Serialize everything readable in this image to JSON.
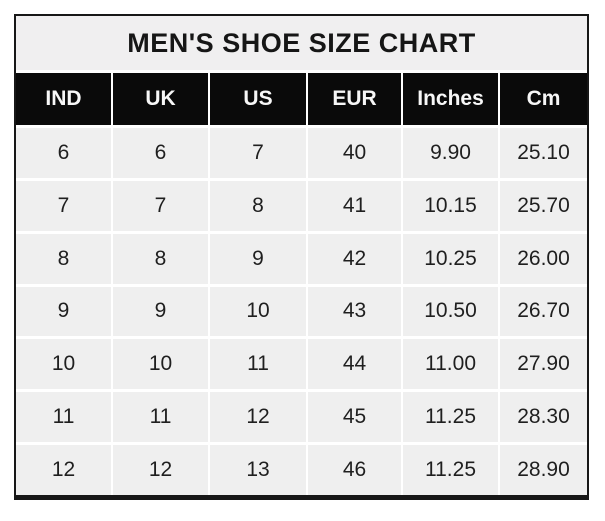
{
  "page_title": "MEN'S SHOE SIZE CHART",
  "colors": {
    "page_background": "#ffffff",
    "frame_border": "#171717",
    "title_background": "#f0eff0",
    "title_text": "#161616",
    "header_background": "#0a0a0a",
    "header_text": "#f7f7f7",
    "cell_background": "#efefef",
    "cell_text": "#1f1f1f",
    "grid_gap": "#ffffff"
  },
  "chart_data": {
    "type": "table",
    "title": "MEN'S SHOE SIZE CHART",
    "columns": [
      "IND",
      "UK",
      "US",
      "EUR",
      "Inches",
      "Cm"
    ],
    "rows": [
      [
        "6",
        "6",
        "7",
        "40",
        "9.90",
        "25.10"
      ],
      [
        "7",
        "7",
        "8",
        "41",
        "10.15",
        "25.70"
      ],
      [
        "8",
        "8",
        "9",
        "42",
        "10.25",
        "26.00"
      ],
      [
        "9",
        "9",
        "10",
        "43",
        "10.50",
        "26.70"
      ],
      [
        "10",
        "10",
        "11",
        "44",
        "11.00",
        "27.90"
      ],
      [
        "11",
        "11",
        "12",
        "45",
        "11.25",
        "28.30"
      ],
      [
        "12",
        "12",
        "13",
        "46",
        "11.25",
        "28.90"
      ]
    ],
    "layout": {
      "legend": "none",
      "grid": "white gaps between gray cells",
      "header_style": "black background, white bold text",
      "outer_border": "black, thicker bottom edge"
    }
  }
}
